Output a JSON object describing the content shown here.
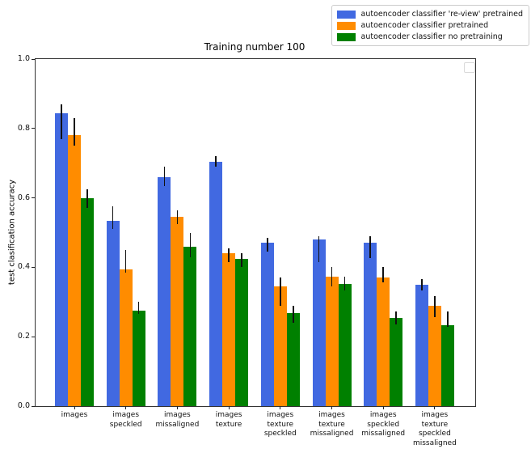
{
  "figure": {
    "title": "Training number 100",
    "ylabel": "test clasification accuracy"
  },
  "legend": {
    "items": [
      {
        "label": "autoencoder classifier 're-view' pretrained",
        "color": "#4169e1"
      },
      {
        "label": "autoencoder classifier pretrained",
        "color": "#ff8c00"
      },
      {
        "label": "autoencoder classifier no pretraining",
        "color": "#008000"
      }
    ]
  },
  "chart_data": {
    "type": "bar",
    "title": "Training number 100",
    "xlabel": "",
    "ylabel": "test clasification accuracy",
    "ylim": [
      0.0,
      1.0
    ],
    "yticks": [
      "0.0",
      "0.2",
      "0.4",
      "0.6",
      "0.8",
      "1.0"
    ],
    "grid": false,
    "legend_position": "outside upper right",
    "categories": [
      "images",
      "images\nspeckled",
      "images\nmissaligned",
      "images\ntexture",
      "images\ntexture\nspeckled",
      "images\ntexture\nmissaligned",
      "images\nspeckled\nmissaligned",
      "images\ntexture\nspeckled\nmissaligned"
    ],
    "series": [
      {
        "name": "autoencoder classifier 're-view' pretrained",
        "color": "#4169e1",
        "values": [
          0.845,
          0.535,
          0.66,
          0.705,
          0.472,
          0.48,
          0.47,
          0.35
        ],
        "err_up": [
          0.025,
          0.04,
          0.03,
          0.015,
          0.013,
          0.01,
          0.02,
          0.015
        ],
        "err_down": [
          0.075,
          0.025,
          0.025,
          0.015,
          0.027,
          0.065,
          0.043,
          0.017
        ]
      },
      {
        "name": "autoencoder classifier pretrained",
        "color": "#ff8c00",
        "values": [
          0.78,
          0.395,
          0.545,
          0.44,
          0.345,
          0.373,
          0.371,
          0.288
        ],
        "err_up": [
          0.05,
          0.055,
          0.02,
          0.015,
          0.025,
          0.027,
          0.029,
          0.029
        ],
        "err_down": [
          0.03,
          0.01,
          0.02,
          0.025,
          0.055,
          0.028,
          0.014,
          0.032
        ]
      },
      {
        "name": "autoencoder classifier no pretraining",
        "color": "#008000",
        "values": [
          0.6,
          0.275,
          0.46,
          0.425,
          0.268,
          0.352,
          0.254,
          0.233
        ],
        "err_up": [
          0.025,
          0.025,
          0.04,
          0.015,
          0.022,
          0.021,
          0.019,
          0.04
        ],
        "err_down": [
          0.03,
          0.01,
          0.03,
          0.025,
          0.028,
          0.019,
          0.019,
          0.005
        ]
      }
    ]
  }
}
